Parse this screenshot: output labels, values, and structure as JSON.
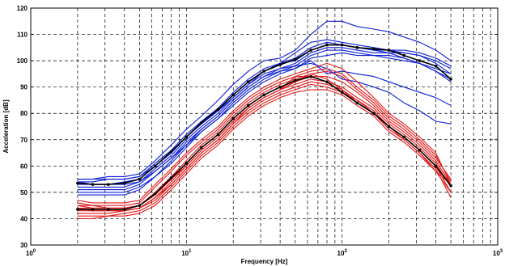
{
  "chart_data": {
    "type": "line",
    "xlabel": "Frequency [Hz]",
    "ylabel": "Acceleration [dB]",
    "xscale": "log",
    "xlim": [
      1,
      1000
    ],
    "ylim": [
      30,
      120
    ],
    "grid": true,
    "yticks": [
      "30",
      "40",
      "50",
      "60",
      "70",
      "80",
      "90",
      "100",
      "110",
      "120"
    ],
    "xticks": [
      {
        "base": "10",
        "exp": "0"
      },
      {
        "base": "10",
        "exp": "1"
      },
      {
        "base": "10",
        "exp": "2"
      },
      {
        "base": "10",
        "exp": "3"
      }
    ],
    "x": [
      2,
      2.5,
      3.15,
      4,
      5,
      6.3,
      8,
      10,
      12.5,
      16,
      20,
      25,
      31.5,
      40,
      50,
      63,
      80,
      100,
      125,
      160,
      200,
      250,
      315,
      400,
      500
    ],
    "colors": {
      "blue": "#0b1fd6",
      "red": "#e41a1a",
      "mean": "#000000"
    },
    "series": [
      {
        "group": "blue",
        "values": [
          55,
          55,
          56,
          56,
          57,
          62,
          68,
          74,
          79,
          85,
          91,
          96,
          100,
          101,
          104,
          110,
          115,
          115,
          113,
          112,
          111,
          109,
          107,
          104,
          100
        ]
      },
      {
        "group": "blue",
        "values": [
          54,
          54,
          55,
          55,
          56,
          61,
          66,
          72,
          77,
          82,
          88,
          93,
          97,
          99,
          103,
          107,
          108,
          107,
          106,
          105,
          104,
          103,
          102,
          100,
          97
        ]
      },
      {
        "group": "blue",
        "values": [
          53,
          53,
          53,
          54,
          55,
          60,
          65,
          71,
          76,
          81,
          87,
          92,
          96,
          99,
          101,
          105,
          107,
          106,
          105,
          104,
          104,
          104,
          103,
          101,
          98
        ]
      },
      {
        "group": "blue",
        "values": [
          52,
          52,
          52,
          52,
          54,
          59,
          64,
          70,
          75,
          80,
          86,
          91,
          96,
          99,
          100,
          104,
          106,
          106,
          105,
          104,
          103,
          101,
          99,
          96,
          92
        ]
      },
      {
        "group": "blue",
        "values": [
          51,
          51,
          51,
          51,
          53,
          58,
          63,
          69,
          74,
          79,
          85,
          90,
          94,
          97,
          99,
          103,
          105,
          105,
          104,
          103,
          103,
          103,
          102,
          99,
          95
        ]
      },
      {
        "group": "blue",
        "values": [
          50,
          50,
          50,
          50,
          52,
          56,
          62,
          68,
          73,
          78,
          84,
          89,
          93,
          96,
          98,
          102,
          104,
          104,
          103,
          102,
          102,
          101,
          99,
          97,
          95
        ]
      },
      {
        "group": "blue",
        "values": [
          49,
          49,
          49,
          49,
          51,
          56,
          61,
          67,
          73,
          78,
          83,
          88,
          92,
          95,
          97,
          101,
          102,
          103,
          102,
          102,
          101,
          100,
          99,
          96,
          93
        ]
      },
      {
        "group": "blue",
        "values": [
          55,
          55,
          55,
          55,
          56,
          60,
          65,
          71,
          76,
          81,
          86,
          91,
          95,
          97,
          98,
          99,
          97,
          93,
          92,
          90,
          88,
          84,
          81,
          77,
          76
        ]
      },
      {
        "group": "blue",
        "values": [
          54,
          53,
          53,
          53,
          54,
          58,
          63,
          68,
          74,
          79,
          85,
          90,
          94,
          96,
          97,
          100,
          95,
          96,
          95,
          94,
          92,
          90,
          88,
          86,
          83
        ]
      },
      {
        "group": "red",
        "values": [
          47,
          46,
          46,
          46,
          47,
          53,
          59,
          65,
          70,
          75,
          81,
          86,
          90,
          93,
          95,
          97,
          99,
          97,
          92,
          86,
          80,
          76,
          71,
          65,
          53
        ]
      },
      {
        "group": "red",
        "values": [
          46,
          45,
          45,
          45,
          46,
          52,
          58,
          64,
          69,
          74,
          80,
          85,
          89,
          92,
          94,
          96,
          97,
          95,
          90,
          85,
          79,
          75,
          70,
          64,
          54
        ]
      },
      {
        "group": "red",
        "values": [
          45,
          44,
          44,
          44,
          45,
          50,
          56,
          62,
          68,
          73,
          79,
          84,
          88,
          91,
          93,
          95,
          96,
          94,
          89,
          84,
          78,
          74,
          69,
          63,
          55
        ]
      },
      {
        "group": "red",
        "values": [
          44,
          44,
          44,
          44,
          45,
          49,
          55,
          61,
          67,
          72,
          78,
          83,
          87,
          90,
          92,
          94,
          94,
          92,
          88,
          83,
          77,
          73,
          68,
          62,
          53
        ]
      },
      {
        "group": "red",
        "values": [
          43,
          43,
          43,
          43,
          44,
          48,
          54,
          60,
          66,
          71,
          77,
          82,
          86,
          89,
          91,
          93,
          92,
          90,
          86,
          82,
          76,
          72,
          67,
          61,
          52
        ]
      },
      {
        "group": "red",
        "values": [
          42,
          42,
          42,
          43,
          44,
          47,
          53,
          59,
          65,
          70,
          76,
          81,
          85,
          88,
          90,
          92,
          91,
          89,
          85,
          81,
          75,
          71,
          66,
          60,
          50
        ]
      },
      {
        "group": "red",
        "values": [
          41,
          41,
          41,
          42,
          43,
          46,
          52,
          58,
          64,
          69,
          75,
          80,
          84,
          87,
          89,
          91,
          90,
          88,
          84,
          80,
          74,
          70,
          65,
          59,
          48
        ]
      },
      {
        "group": "red",
        "values": [
          40,
          40,
          41,
          41,
          42,
          45,
          51,
          57,
          63,
          68,
          74,
          79,
          83,
          86,
          88,
          89,
          89,
          87,
          83,
          79,
          73,
          69,
          64,
          58,
          53
        ]
      },
      {
        "group": "red",
        "values": [
          44,
          43,
          43,
          43,
          44,
          48,
          53,
          59,
          65,
          70,
          76,
          82,
          86,
          89,
          92,
          95,
          93,
          89,
          84,
          80,
          75,
          71,
          66,
          60,
          53
        ]
      },
      {
        "group": "red",
        "values": [
          45,
          45,
          44,
          44,
          45,
          49,
          55,
          60,
          66,
          71,
          77,
          82,
          86,
          89,
          94,
          94,
          92,
          88,
          85,
          80,
          75,
          70,
          65,
          58,
          50
        ]
      },
      {
        "group": "mean",
        "values": [
          53.5,
          53,
          53,
          53.5,
          55,
          60,
          65.5,
          71,
          76.5,
          81.5,
          87,
          92,
          96,
          98.5,
          100.5,
          104,
          106,
          106,
          105,
          104.5,
          104,
          102,
          100,
          98,
          93
        ]
      },
      {
        "group": "mean",
        "values": [
          43.5,
          43.5,
          43.5,
          43.5,
          45,
          49.5,
          55.5,
          61,
          67,
          72,
          78,
          83,
          87,
          90,
          92.5,
          94,
          92,
          88,
          84,
          80,
          75,
          71,
          66,
          60,
          52.5
        ]
      }
    ]
  }
}
